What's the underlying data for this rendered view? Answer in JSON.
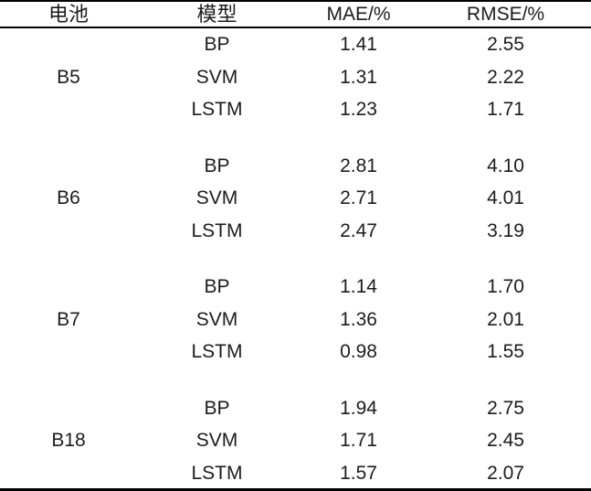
{
  "chart_data": {
    "type": "table",
    "columns": [
      "电池",
      "模型",
      "MAE/%",
      "RMSE/%"
    ],
    "groups": [
      {
        "battery": "B5",
        "rows": [
          {
            "model": "BP",
            "mae": "1.41",
            "rmse": "2.55"
          },
          {
            "model": "SVM",
            "mae": "1.31",
            "rmse": "2.22"
          },
          {
            "model": "LSTM",
            "mae": "1.23",
            "rmse": "1.71"
          }
        ]
      },
      {
        "battery": "B6",
        "rows": [
          {
            "model": "BP",
            "mae": "2.81",
            "rmse": "4.10"
          },
          {
            "model": "SVM",
            "mae": "2.71",
            "rmse": "4.01"
          },
          {
            "model": "LSTM",
            "mae": "2.47",
            "rmse": "3.19"
          }
        ]
      },
      {
        "battery": "B7",
        "rows": [
          {
            "model": "BP",
            "mae": "1.14",
            "rmse": "1.70"
          },
          {
            "model": "SVM",
            "mae": "1.36",
            "rmse": "2.01"
          },
          {
            "model": "LSTM",
            "mae": "0.98",
            "rmse": "1.55"
          }
        ]
      },
      {
        "battery": "B18",
        "rows": [
          {
            "model": "BP",
            "mae": "1.94",
            "rmse": "2.75"
          },
          {
            "model": "SVM",
            "mae": "1.71",
            "rmse": "2.45"
          },
          {
            "model": "LSTM",
            "mae": "1.57",
            "rmse": "2.07"
          }
        ]
      }
    ],
    "layout": {
      "rules": "top, below-header, bottom",
      "grid": "off"
    },
    "colors": {
      "text": "#1c1c1c",
      "rule": "#000000",
      "background": "#ffffff"
    }
  }
}
